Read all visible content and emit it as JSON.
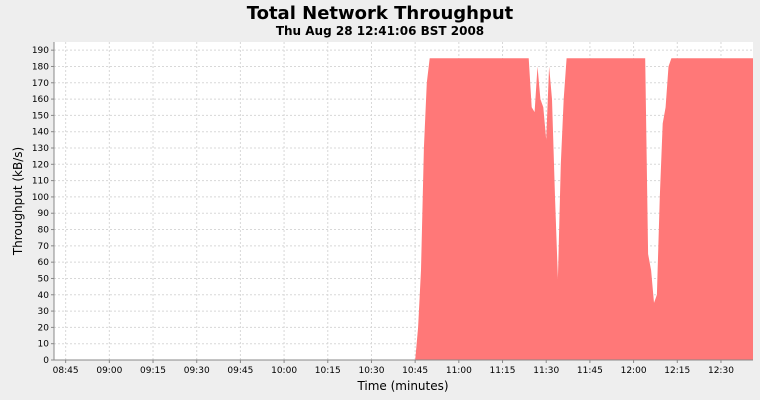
{
  "chart_data": {
    "type": "area",
    "title": "Total Network Throughput",
    "subtitle": "Thu Aug 28 12:41:06 BST 2008",
    "xlabel": "Time (minutes)",
    "ylabel": "Throughput (kB/s)",
    "xlim": [
      "08:41",
      "12:41"
    ],
    "ylim": [
      0,
      195
    ],
    "x_ticks": [
      "08:45",
      "09:00",
      "09:15",
      "09:30",
      "09:45",
      "10:00",
      "10:15",
      "10:30",
      "10:45",
      "11:00",
      "11:15",
      "11:30",
      "11:45",
      "12:00",
      "12:15",
      "12:30"
    ],
    "y_ticks": [
      0,
      10,
      20,
      30,
      40,
      50,
      60,
      70,
      80,
      90,
      100,
      110,
      120,
      130,
      140,
      150,
      160,
      170,
      180,
      190
    ],
    "grid": true,
    "colors": {
      "area": "#ff7878",
      "plot_background": "#ffffff",
      "gridline": "#d8d8d8",
      "page_background": "#eeeeee"
    },
    "series": [
      {
        "values": [
          [
            "08:41",
            0
          ],
          [
            "10:45",
            0
          ],
          [
            "10:46",
            20
          ],
          [
            "10:47",
            55
          ],
          [
            "10:48",
            130
          ],
          [
            "10:49",
            170
          ],
          [
            "10:50",
            185
          ],
          [
            "11:00",
            185
          ],
          [
            "11:10",
            185
          ],
          [
            "11:20",
            185
          ],
          [
            "11:24",
            185
          ],
          [
            "11:25",
            155
          ],
          [
            "11:26",
            152
          ],
          [
            "11:27",
            180
          ],
          [
            "11:28",
            160
          ],
          [
            "11:29",
            155
          ],
          [
            "11:30",
            135
          ],
          [
            "11:31",
            180
          ],
          [
            "11:32",
            160
          ],
          [
            "11:33",
            100
          ],
          [
            "11:34",
            50
          ],
          [
            "11:35",
            120
          ],
          [
            "11:36",
            160
          ],
          [
            "11:37",
            185
          ],
          [
            "11:45",
            185
          ],
          [
            "11:55",
            185
          ],
          [
            "12:04",
            185
          ],
          [
            "12:05",
            65
          ],
          [
            "12:06",
            55
          ],
          [
            "12:07",
            35
          ],
          [
            "12:08",
            40
          ],
          [
            "12:09",
            100
          ],
          [
            "12:10",
            145
          ],
          [
            "12:11",
            155
          ],
          [
            "12:12",
            180
          ],
          [
            "12:13",
            185
          ],
          [
            "12:20",
            185
          ],
          [
            "12:30",
            185
          ],
          [
            "12:41",
            185
          ]
        ]
      }
    ]
  }
}
